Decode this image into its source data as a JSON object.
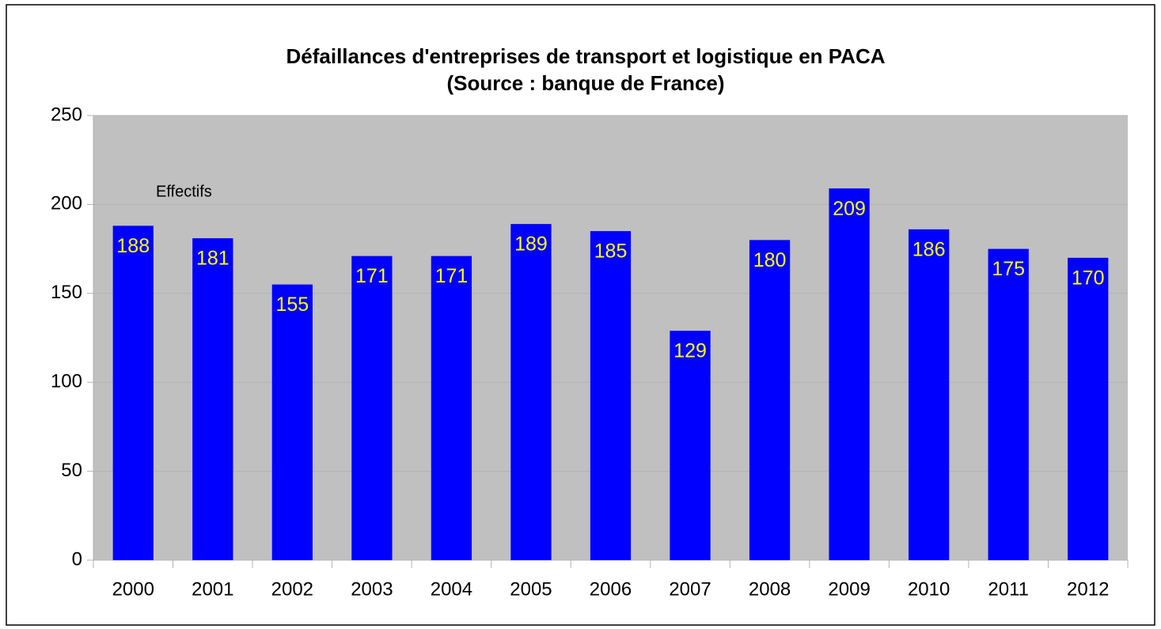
{
  "chart_data": {
    "type": "bar",
    "title": "Défaillances d'entreprises de transport et logistique en PACA",
    "subtitle": "(Source : banque de France)",
    "annotation": "Effectifs",
    "categories": [
      "2000",
      "2001",
      "2002",
      "2003",
      "2004",
      "2005",
      "2006",
      "2007",
      "2008",
      "2009",
      "2010",
      "2011",
      "2012"
    ],
    "values": [
      188,
      181,
      155,
      171,
      171,
      189,
      185,
      129,
      180,
      209,
      186,
      175,
      170
    ],
    "color": "#0000ff",
    "label_color": "#ffff00",
    "ylim": [
      0,
      250
    ],
    "yticks": [
      0,
      50,
      100,
      150,
      200,
      250
    ],
    "grid": true
  }
}
